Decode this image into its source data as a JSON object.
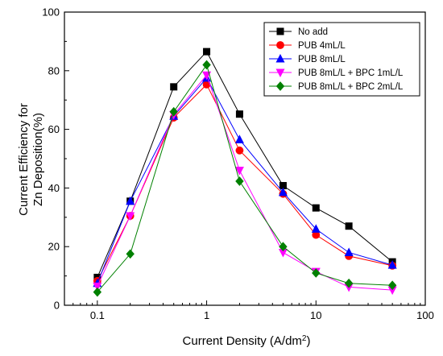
{
  "chart_data": {
    "type": "line",
    "xscale": "log",
    "xlim": [
      0.05,
      100
    ],
    "ylim": [
      0,
      100
    ],
    "xticks": [
      0.1,
      1,
      10,
      100
    ],
    "xtick_labels": [
      "0.1",
      "1",
      "10",
      "100"
    ],
    "yticks": [
      0,
      20,
      40,
      60,
      80,
      100
    ],
    "ytick_labels": [
      "0",
      "20",
      "40",
      "60",
      "80",
      "100"
    ],
    "xlabel_main": "Current Density (A/dm",
    "xlabel_sup": "2",
    "xlabel_end": ")",
    "ylabel_line1": "Current Efficiency for",
    "ylabel_line2": "Zn Deposition(%)",
    "legend_position": "top-right",
    "x": [
      0.1,
      0.2,
      0.5,
      1,
      2,
      5,
      10,
      20,
      50
    ],
    "series": [
      {
        "name": "No add",
        "color": "#000000",
        "marker": "square",
        "values": [
          9.5,
          35.5,
          74.5,
          86.5,
          65.2,
          40.8,
          33.2,
          27.0,
          14.8
        ]
      },
      {
        "name": "PUB 4mL/L",
        "color": "#ff0000",
        "marker": "circle",
        "values": [
          8.3,
          30.5,
          64.0,
          75.3,
          52.8,
          38.0,
          24.0,
          16.8,
          13.5
        ]
      },
      {
        "name": "PUB 8mL/L",
        "color": "#0000ff",
        "marker": "triangle-up",
        "values": [
          7.5,
          35.5,
          64.5,
          77.5,
          56.5,
          38.5,
          26.0,
          18.0,
          13.7
        ]
      },
      {
        "name": "PUB 8mL/L + BPC 1mL/L",
        "color": "#ff00ff",
        "marker": "triangle-down",
        "values": [
          6.5,
          30.5,
          65.0,
          78.5,
          46.0,
          18.0,
          11.5,
          6.2,
          5.2
        ]
      },
      {
        "name": "PUB 8mL/L + BPC 2mL/L",
        "color": "#008000",
        "marker": "diamond",
        "values": [
          4.5,
          17.5,
          66.0,
          82.0,
          42.3,
          20.0,
          11.0,
          7.5,
          6.8
        ]
      }
    ]
  }
}
